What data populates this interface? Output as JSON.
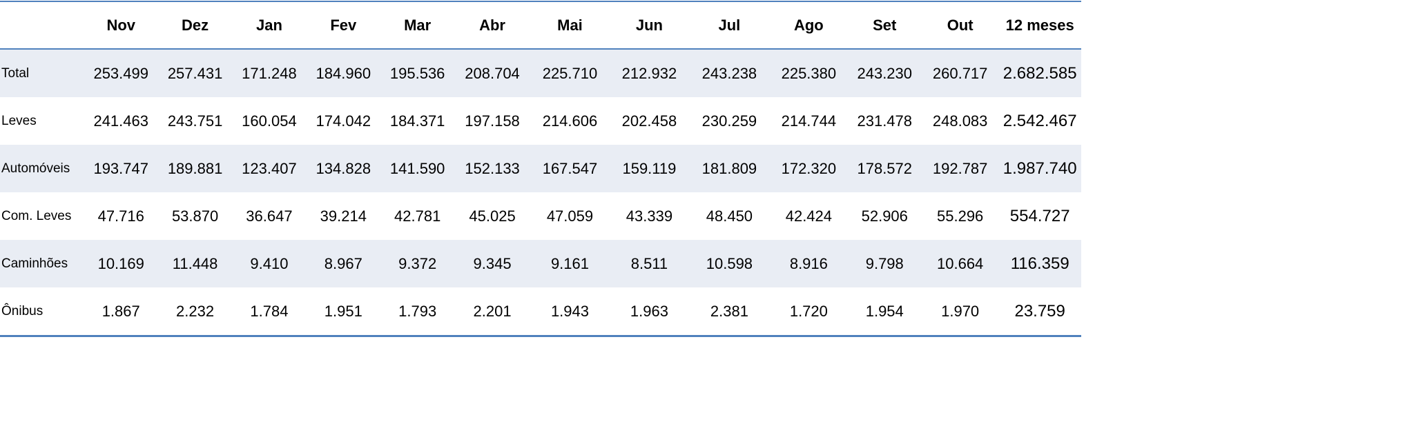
{
  "table": {
    "columns": [
      "Nov",
      "Dez",
      "Jan",
      "Fev",
      "Mar",
      "Abr",
      "Mai",
      "Jun",
      "Jul",
      "Ago",
      "Set",
      "Out",
      "12 meses"
    ],
    "rows": [
      {
        "label": "Total",
        "values": [
          "253.499",
          "257.431",
          "171.248",
          "184.960",
          "195.536",
          "208.704",
          "225.710",
          "212.932",
          "243.238",
          "225.380",
          "243.230",
          "260.717",
          "2.682.585"
        ]
      },
      {
        "label": "Leves",
        "values": [
          "241.463",
          "243.751",
          "160.054",
          "174.042",
          "184.371",
          "197.158",
          "214.606",
          "202.458",
          "230.259",
          "214.744",
          "231.478",
          "248.083",
          "2.542.467"
        ]
      },
      {
        "label": "Automóveis",
        "values": [
          "193.747",
          "189.881",
          "123.407",
          "134.828",
          "141.590",
          "152.133",
          "167.547",
          "159.119",
          "181.809",
          "172.320",
          "178.572",
          "192.787",
          "1.987.740"
        ]
      },
      {
        "label": "Com. Leves",
        "values": [
          "47.716",
          "53.870",
          "36.647",
          "39.214",
          "42.781",
          "45.025",
          "47.059",
          "43.339",
          "48.450",
          "42.424",
          "52.906",
          "55.296",
          "554.727"
        ]
      },
      {
        "label": "Caminhões",
        "values": [
          "10.169",
          "11.448",
          "9.410",
          "8.967",
          "9.372",
          "9.345",
          "9.161",
          "8.511",
          "10.598",
          "8.916",
          "9.798",
          "10.664",
          "116.359"
        ]
      },
      {
        "label": "Ônibus",
        "values": [
          "1.867",
          "2.232",
          "1.784",
          "1.951",
          "1.793",
          "2.201",
          "1.943",
          "1.963",
          "2.381",
          "1.720",
          "1.954",
          "1.970",
          "23.759"
        ]
      }
    ]
  }
}
